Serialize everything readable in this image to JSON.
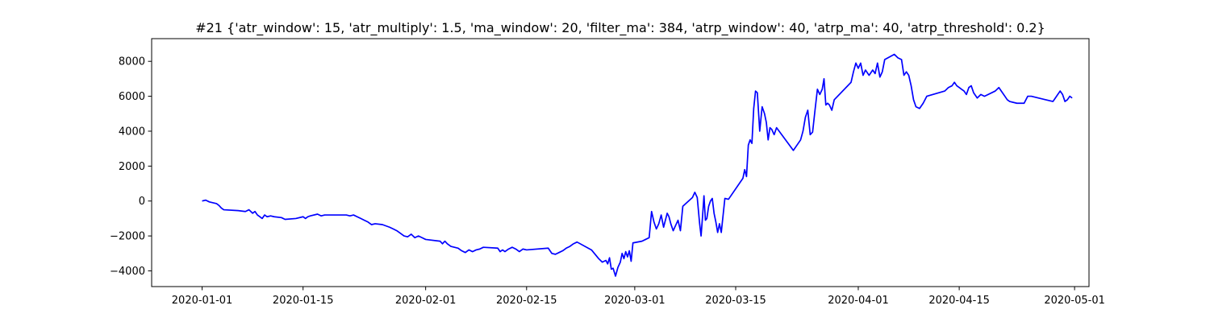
{
  "chart_data": {
    "type": "line",
    "title": "#21 {'atr_window': 15, 'atr_multiply': 1.5, 'ma_window': 20, 'filter_ma': 384, 'atrp_window': 40, 'atrp_ma': 40, 'atrp_threshold': 0.2}",
    "xlabel": "",
    "ylabel": "",
    "xlim": [
      "2019-12-25",
      "2020-05-03"
    ],
    "ylim": [
      -4900,
      9300
    ],
    "grid": false,
    "line_color": "#0000ff",
    "x_ticks": [
      "2020-01-01",
      "2020-01-15",
      "2020-02-01",
      "2020-02-15",
      "2020-03-01",
      "2020-03-15",
      "2020-04-01",
      "2020-04-15",
      "2020-05-01"
    ],
    "y_ticks": [
      8000,
      6000,
      4000,
      2000,
      0,
      -2000,
      -4000
    ],
    "y_tick_labels": [
      "8000",
      "6000",
      "4000",
      "2000",
      "0",
      "−2000",
      "−4000"
    ],
    "series": [
      {
        "points": [
          [
            "2020-01-01",
            0
          ],
          [
            "2020-01-01",
            50
          ],
          [
            "2020-01-02",
            -50
          ],
          [
            "2020-01-03",
            -150
          ],
          [
            "2020-01-03",
            -250
          ],
          [
            "2020-01-03",
            -400
          ],
          [
            "2020-01-04",
            -500
          ],
          [
            "2020-01-06",
            -550
          ],
          [
            "2020-01-07",
            -600
          ],
          [
            "2020-01-07",
            -500
          ],
          [
            "2020-01-08",
            -700
          ],
          [
            "2020-01-08",
            -600
          ],
          [
            "2020-01-08",
            -800
          ],
          [
            "2020-01-09",
            -900
          ],
          [
            "2020-01-09",
            -1000
          ],
          [
            "2020-01-09",
            -800
          ],
          [
            "2020-01-10",
            -900
          ],
          [
            "2020-01-10",
            -850
          ],
          [
            "2020-01-11",
            -900
          ],
          [
            "2020-01-12",
            -950
          ],
          [
            "2020-01-12",
            -1050
          ],
          [
            "2020-01-14",
            -1000
          ],
          [
            "2020-01-15",
            -900
          ],
          [
            "2020-01-15",
            -1000
          ],
          [
            "2020-01-15",
            -900
          ],
          [
            "2020-01-16",
            -850
          ],
          [
            "2020-01-17",
            -750
          ],
          [
            "2020-01-17",
            -850
          ],
          [
            "2020-01-18",
            -800
          ],
          [
            "2020-01-21",
            -800
          ],
          [
            "2020-01-21",
            -850
          ],
          [
            "2020-01-22",
            -800
          ],
          [
            "2020-01-22",
            -900
          ],
          [
            "2020-01-23",
            -1000
          ],
          [
            "2020-01-23",
            -1100
          ],
          [
            "2020-01-24",
            -1200
          ],
          [
            "2020-01-24",
            -1350
          ],
          [
            "2020-01-25",
            -1300
          ],
          [
            "2020-01-26",
            -1350
          ],
          [
            "2020-01-27",
            -1500
          ],
          [
            "2020-01-27",
            -1600
          ],
          [
            "2020-01-28",
            -1700
          ],
          [
            "2020-01-28",
            -1850
          ],
          [
            "2020-01-29",
            -2000
          ],
          [
            "2020-01-29",
            -2050
          ],
          [
            "2020-01-30",
            -1900
          ],
          [
            "2020-01-30",
            -2100
          ],
          [
            "2020-01-31",
            -2000
          ],
          [
            "2020-01-31",
            -2100
          ],
          [
            "2020-02-01",
            -2200
          ],
          [
            "2020-02-03",
            -2300
          ],
          [
            "2020-02-03",
            -2450
          ],
          [
            "2020-02-03",
            -2300
          ],
          [
            "2020-02-04",
            -2450
          ],
          [
            "2020-02-04",
            -2600
          ],
          [
            "2020-02-05",
            -2650
          ],
          [
            "2020-02-05",
            -2700
          ],
          [
            "2020-02-06",
            -2850
          ],
          [
            "2020-02-06",
            -2950
          ],
          [
            "2020-02-07",
            -2800
          ],
          [
            "2020-02-07",
            -2900
          ],
          [
            "2020-02-08",
            -2800
          ],
          [
            "2020-02-08",
            -2750
          ],
          [
            "2020-02-09",
            -2650
          ],
          [
            "2020-02-11",
            -2700
          ],
          [
            "2020-02-11",
            -2900
          ],
          [
            "2020-02-11",
            -2800
          ],
          [
            "2020-02-12",
            -2900
          ],
          [
            "2020-02-12",
            -2750
          ],
          [
            "2020-02-13",
            -2650
          ],
          [
            "2020-02-13",
            -2750
          ],
          [
            "2020-02-14",
            -2900
          ],
          [
            "2020-02-14",
            -2750
          ],
          [
            "2020-02-15",
            -2800
          ],
          [
            "2020-02-18",
            -2700
          ],
          [
            "2020-02-18",
            -3000
          ],
          [
            "2020-02-19",
            -3050
          ],
          [
            "2020-02-19",
            -2950
          ],
          [
            "2020-02-20",
            -2850
          ],
          [
            "2020-02-20",
            -2700
          ],
          [
            "2020-02-21",
            -2600
          ],
          [
            "2020-02-21",
            -2450
          ],
          [
            "2020-02-22",
            -2350
          ],
          [
            "2020-02-24",
            -2800
          ],
          [
            "2020-02-25",
            -3300
          ],
          [
            "2020-02-25",
            -3500
          ],
          [
            "2020-02-26",
            -3400
          ],
          [
            "2020-02-26",
            -3600
          ],
          [
            "2020-02-26",
            -3250
          ],
          [
            "2020-02-26",
            -3900
          ],
          [
            "2020-02-27",
            -3850
          ],
          [
            "2020-02-27",
            -4300
          ],
          [
            "2020-02-27",
            -3800
          ],
          [
            "2020-02-28",
            -3500
          ],
          [
            "2020-02-28",
            -3000
          ],
          [
            "2020-02-28",
            -3300
          ],
          [
            "2020-02-28",
            -2900
          ],
          [
            "2020-02-29",
            -3200
          ],
          [
            "2020-02-29",
            -2850
          ],
          [
            "2020-02-29",
            -3450
          ],
          [
            "2020-02-29",
            -2400
          ],
          [
            "2020-03-02",
            -2300
          ],
          [
            "2020-03-02",
            -2200
          ],
          [
            "2020-03-03",
            -2100
          ],
          [
            "2020-03-03",
            -600
          ],
          [
            "2020-03-03",
            -1200
          ],
          [
            "2020-03-04",
            -1600
          ],
          [
            "2020-03-04",
            -1300
          ],
          [
            "2020-03-04",
            -800
          ],
          [
            "2020-03-05",
            -1500
          ],
          [
            "2020-03-05",
            -1100
          ],
          [
            "2020-03-05",
            -700
          ],
          [
            "2020-03-05",
            -900
          ],
          [
            "2020-03-06",
            -1300
          ],
          [
            "2020-03-06",
            -1700
          ],
          [
            "2020-03-06",
            -1400
          ],
          [
            "2020-03-07",
            -1100
          ],
          [
            "2020-03-07",
            -1700
          ],
          [
            "2020-03-07",
            -300
          ],
          [
            "2020-03-09",
            200
          ],
          [
            "2020-03-09",
            500
          ],
          [
            "2020-03-09",
            200
          ],
          [
            "2020-03-10",
            -1300
          ],
          [
            "2020-03-10",
            -2000
          ],
          [
            "2020-03-10",
            -900
          ],
          [
            "2020-03-10",
            300
          ],
          [
            "2020-03-10",
            -1100
          ],
          [
            "2020-03-11",
            -1000
          ],
          [
            "2020-03-11",
            -300
          ],
          [
            "2020-03-11",
            0
          ],
          [
            "2020-03-11",
            150
          ],
          [
            "2020-03-12",
            -700
          ],
          [
            "2020-03-12",
            -1200
          ],
          [
            "2020-03-12",
            -1800
          ],
          [
            "2020-03-12",
            -1300
          ],
          [
            "2020-03-13",
            -1800
          ],
          [
            "2020-03-13",
            150
          ],
          [
            "2020-03-14",
            100
          ],
          [
            "2020-03-16",
            1300
          ],
          [
            "2020-03-16",
            1800
          ],
          [
            "2020-03-16",
            1400
          ],
          [
            "2020-03-16",
            3200
          ],
          [
            "2020-03-17",
            3500
          ],
          [
            "2020-03-17",
            3300
          ],
          [
            "2020-03-17",
            5300
          ],
          [
            "2020-03-17",
            6300
          ],
          [
            "2020-03-18",
            6200
          ],
          [
            "2020-03-18",
            4000
          ],
          [
            "2020-03-18",
            5400
          ],
          [
            "2020-03-19",
            5000
          ],
          [
            "2020-03-19",
            4500
          ],
          [
            "2020-03-19",
            3500
          ],
          [
            "2020-03-19",
            4200
          ],
          [
            "2020-03-20",
            4100
          ],
          [
            "2020-03-20",
            3800
          ],
          [
            "2020-03-20",
            4200
          ],
          [
            "2020-03-23",
            2900
          ],
          [
            "2020-03-24",
            3500
          ],
          [
            "2020-03-24",
            4000
          ],
          [
            "2020-03-24",
            4800
          ],
          [
            "2020-03-25",
            5200
          ],
          [
            "2020-03-25",
            3800
          ],
          [
            "2020-03-25",
            3950
          ],
          [
            "2020-03-26",
            5200
          ],
          [
            "2020-03-26",
            6400
          ],
          [
            "2020-03-26",
            6100
          ],
          [
            "2020-03-27",
            6400
          ],
          [
            "2020-03-27",
            7000
          ],
          [
            "2020-03-27",
            5500
          ],
          [
            "2020-03-27",
            5600
          ],
          [
            "2020-03-28",
            5500
          ],
          [
            "2020-03-28",
            5200
          ],
          [
            "2020-03-28",
            5800
          ],
          [
            "2020-03-31",
            6800
          ],
          [
            "2020-03-31",
            7400
          ],
          [
            "2020-03-31",
            7900
          ],
          [
            "2020-04-01",
            7600
          ],
          [
            "2020-04-01",
            7900
          ],
          [
            "2020-04-01",
            7200
          ],
          [
            "2020-04-02",
            7500
          ],
          [
            "2020-04-02",
            7200
          ],
          [
            "2020-04-03",
            7500
          ],
          [
            "2020-04-03",
            7300
          ],
          [
            "2020-04-03",
            7900
          ],
          [
            "2020-04-04",
            7100
          ],
          [
            "2020-04-04",
            7400
          ],
          [
            "2020-04-04",
            8100
          ],
          [
            "2020-04-06",
            8400
          ],
          [
            "2020-04-06",
            8200
          ],
          [
            "2020-04-07",
            8100
          ],
          [
            "2020-04-07",
            7200
          ],
          [
            "2020-04-07",
            7400
          ],
          [
            "2020-04-08",
            7200
          ],
          [
            "2020-04-08",
            6600
          ],
          [
            "2020-04-08",
            5800
          ],
          [
            "2020-04-09",
            5400
          ],
          [
            "2020-04-09",
            5300
          ],
          [
            "2020-04-10",
            5600
          ],
          [
            "2020-04-10",
            6000
          ],
          [
            "2020-04-13",
            6300
          ],
          [
            "2020-04-13",
            6500
          ],
          [
            "2020-04-14",
            6600
          ],
          [
            "2020-04-14",
            6800
          ],
          [
            "2020-04-14",
            6600
          ],
          [
            "2020-04-15",
            6500
          ],
          [
            "2020-04-15",
            6400
          ],
          [
            "2020-04-15",
            6300
          ],
          [
            "2020-04-16",
            6100
          ],
          [
            "2020-04-16",
            6500
          ],
          [
            "2020-04-16",
            6600
          ],
          [
            "2020-04-17",
            6200
          ],
          [
            "2020-04-17",
            5900
          ],
          [
            "2020-04-18",
            6100
          ],
          [
            "2020-04-18",
            6000
          ],
          [
            "2020-04-20",
            6300
          ],
          [
            "2020-04-20",
            6500
          ],
          [
            "2020-04-21",
            6200
          ],
          [
            "2020-04-21",
            6000
          ],
          [
            "2020-04-21",
            5800
          ],
          [
            "2020-04-22",
            5700
          ],
          [
            "2020-04-23",
            5600
          ],
          [
            "2020-04-24",
            5600
          ],
          [
            "2020-04-24",
            6000
          ],
          [
            "2020-04-25",
            6000
          ],
          [
            "2020-04-27",
            5800
          ],
          [
            "2020-04-28",
            5700
          ],
          [
            "2020-04-28",
            5900
          ],
          [
            "2020-04-28",
            6100
          ],
          [
            "2020-04-29",
            6300
          ],
          [
            "2020-04-29",
            6100
          ],
          [
            "2020-04-29",
            5700
          ],
          [
            "2020-04-30",
            5800
          ],
          [
            "2020-04-30",
            6000
          ],
          [
            "2020-04-30",
            5900
          ]
        ]
      }
    ]
  }
}
